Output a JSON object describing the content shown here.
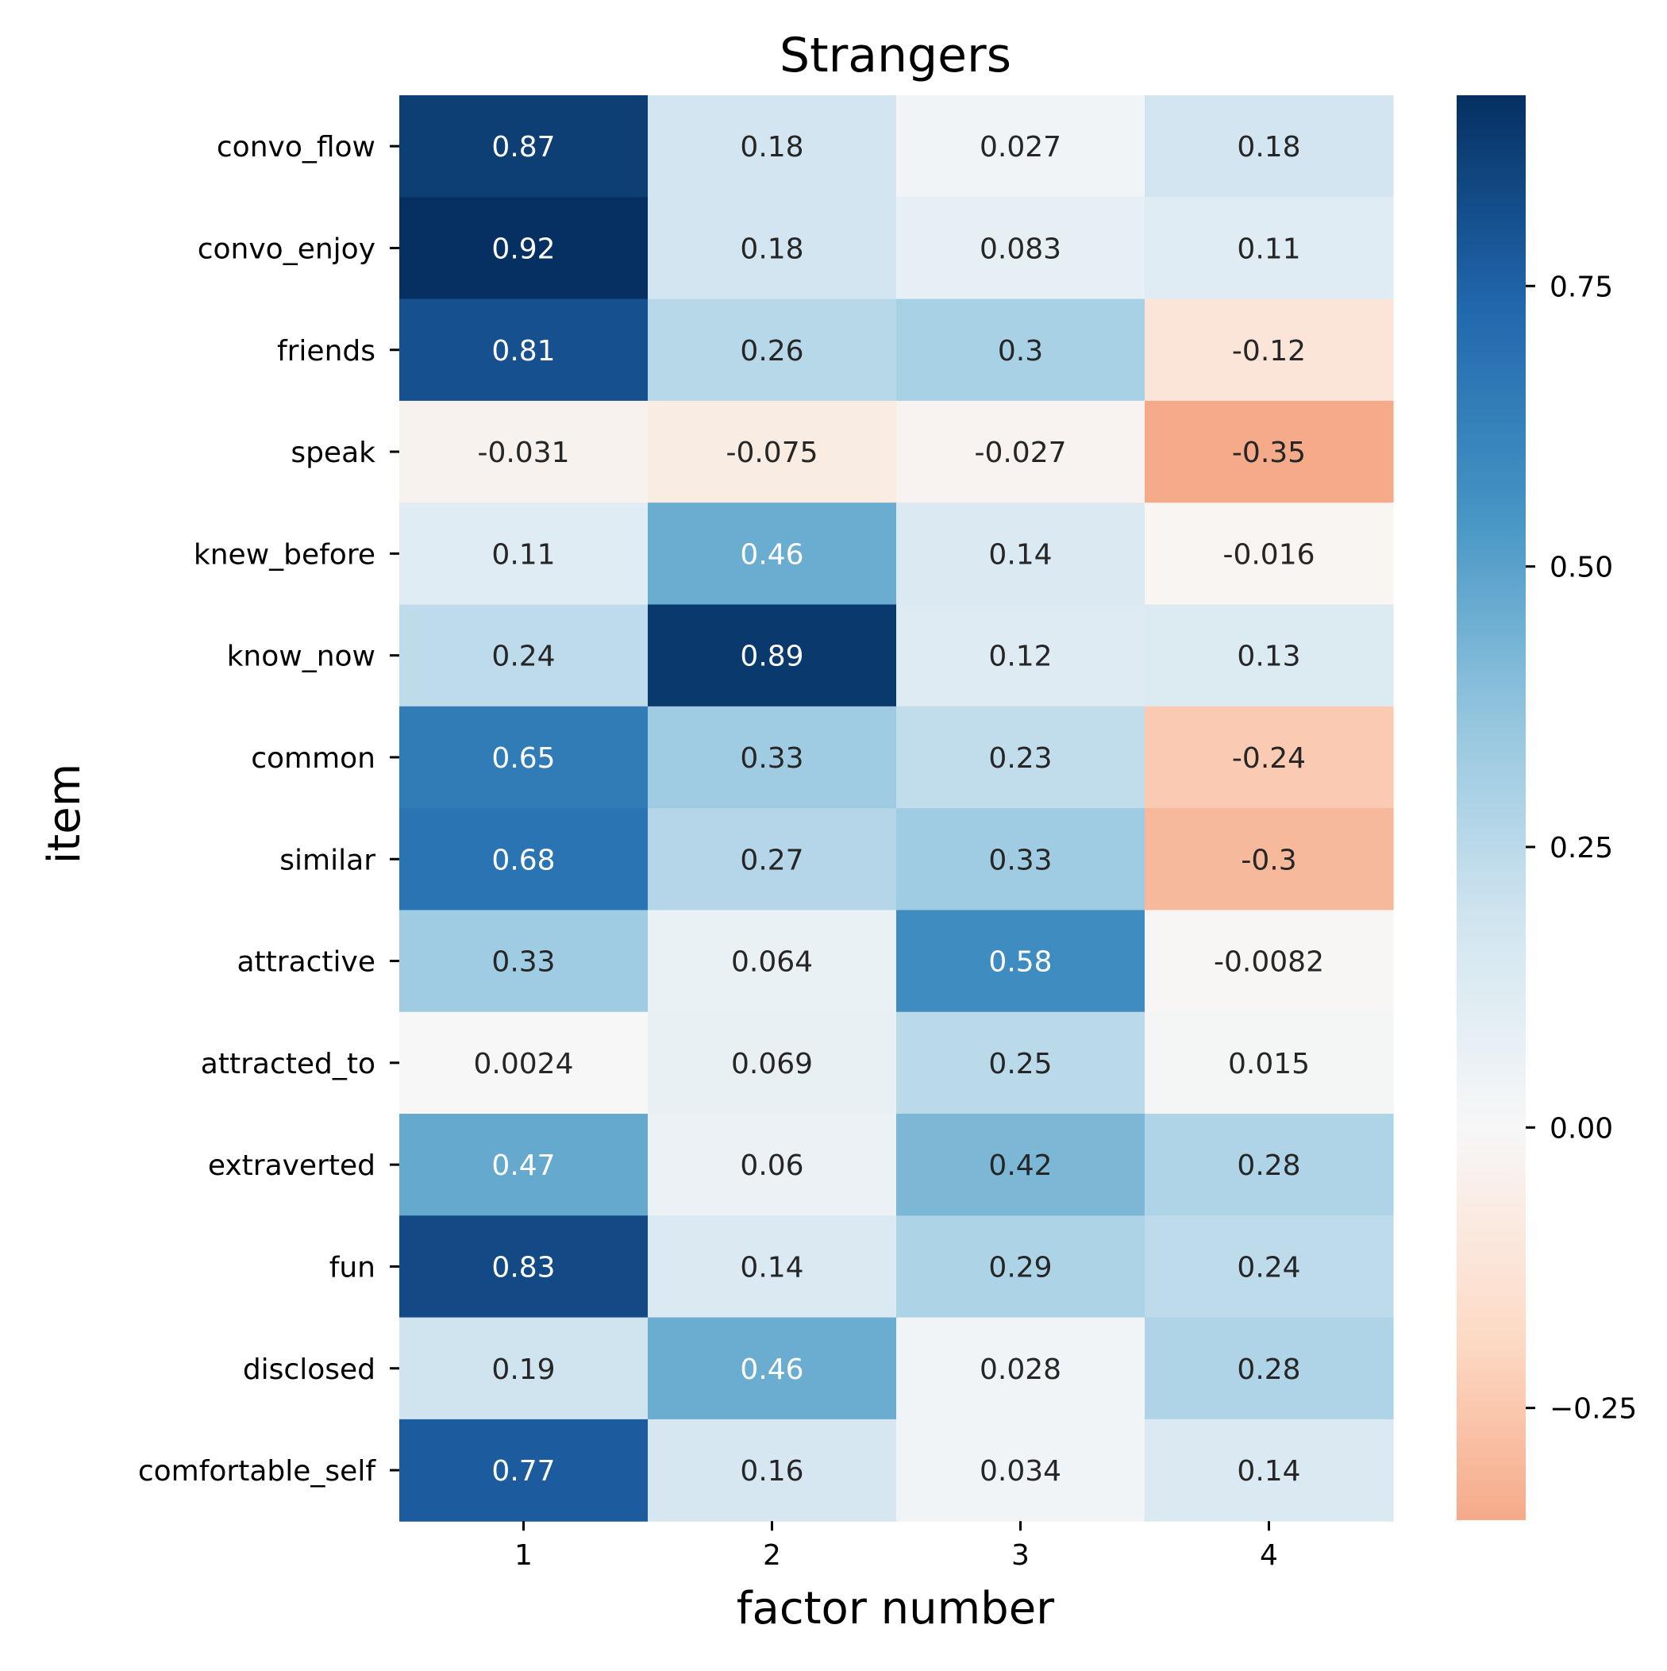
{
  "chart_data": {
    "type": "heatmap",
    "title": "Strangers",
    "xlabel": "factor number",
    "ylabel": "item",
    "x_categories": [
      "1",
      "2",
      "3",
      "4"
    ],
    "y_categories": [
      "convo_flow",
      "convo_enjoy",
      "friends",
      "speak",
      "knew_before",
      "know_now",
      "common",
      "similar",
      "attractive",
      "attracted_to",
      "extraverted",
      "fun",
      "disclosed",
      "comfortable_self"
    ],
    "values": [
      [
        0.87,
        0.18,
        0.027,
        0.18
      ],
      [
        0.92,
        0.18,
        0.083,
        0.11
      ],
      [
        0.81,
        0.26,
        0.3,
        -0.12
      ],
      [
        -0.031,
        -0.075,
        -0.027,
        -0.35
      ],
      [
        0.11,
        0.46,
        0.14,
        -0.016
      ],
      [
        0.24,
        0.89,
        0.12,
        0.13
      ],
      [
        0.65,
        0.33,
        0.23,
        -0.24
      ],
      [
        0.68,
        0.27,
        0.33,
        -0.3
      ],
      [
        0.33,
        0.064,
        0.58,
        -0.0082
      ],
      [
        0.0024,
        0.069,
        0.25,
        0.015
      ],
      [
        0.47,
        0.06,
        0.42,
        0.28
      ],
      [
        0.83,
        0.14,
        0.29,
        0.24
      ],
      [
        0.19,
        0.46,
        0.028,
        0.28
      ],
      [
        0.77,
        0.16,
        0.034,
        0.14
      ]
    ],
    "value_labels": [
      [
        "0.87",
        "0.18",
        "0.027",
        "0.18"
      ],
      [
        "0.92",
        "0.18",
        "0.083",
        "0.11"
      ],
      [
        "0.81",
        "0.26",
        "0.3",
        "-0.12"
      ],
      [
        "-0.031",
        "-0.075",
        "-0.027",
        "-0.35"
      ],
      [
        "0.11",
        "0.46",
        "0.14",
        "-0.016"
      ],
      [
        "0.24",
        "0.89",
        "0.12",
        "0.13"
      ],
      [
        "0.65",
        "0.33",
        "0.23",
        "-0.24"
      ],
      [
        "0.68",
        "0.27",
        "0.33",
        "-0.3"
      ],
      [
        "0.33",
        "0.064",
        "0.58",
        "-0.0082"
      ],
      [
        "0.0024",
        "0.069",
        "0.25",
        "0.015"
      ],
      [
        "0.47",
        "0.06",
        "0.42",
        "0.28"
      ],
      [
        "0.83",
        "0.14",
        "0.29",
        "0.24"
      ],
      [
        "0.19",
        "0.46",
        "0.028",
        "0.28"
      ],
      [
        "0.77",
        "0.16",
        "0.034",
        "0.14"
      ]
    ],
    "colormap": "RdBu (centered at 0)",
    "color_range": [
      -0.35,
      0.92
    ],
    "colorbar": {
      "position": "right",
      "ticks": [
        -0.25,
        0.0,
        0.25,
        0.5,
        0.75
      ],
      "tick_labels": [
        "−0.25",
        "0.00",
        "0.25",
        "0.50",
        "0.75"
      ]
    },
    "annotation_colors": {
      "dark_text": "#262626",
      "light_text": "#ffffff"
    },
    "grid": false
  }
}
